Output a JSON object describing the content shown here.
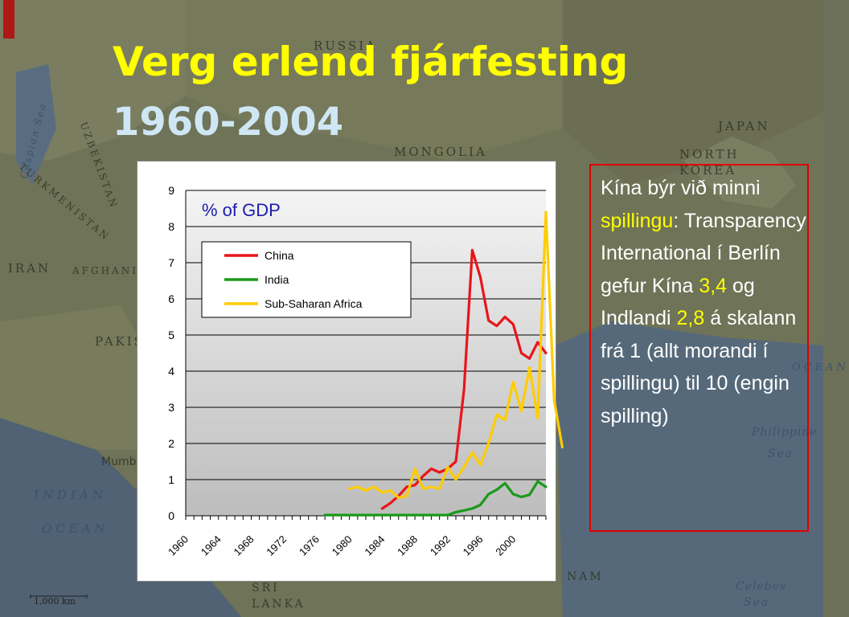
{
  "slide": {
    "title_line1": "Verg erlend fjárfesting",
    "title_line2": "1960-2004",
    "background_map_labels": {
      "russia": "RUSSIA",
      "mongolia": "MONGOLIA",
      "japan": "JAPAN",
      "north": "NORTH",
      "korea": "KOREA",
      "uzbekistan": "UZBEKISTAN",
      "turkmenistan": "TURKMENISTAN",
      "iran": "IRAN",
      "afghanistan": "AFGHANIS",
      "pakistan": "PAKIS",
      "mumbai": "Mumb",
      "caspian_sea": "Caspian Sea",
      "indian": "INDIAN",
      "ocean_left": "OCEAN",
      "ocean_right": "OCEAN",
      "philippine": "Philippine",
      "sea_right": "Sea",
      "sri": "SRI",
      "lanka": "LANKA",
      "nam": "NAM",
      "celebes": "Celebes",
      "sea_bottom": "Sea",
      "scale": "1,000 km"
    }
  },
  "note": {
    "parts": [
      {
        "text": "Kína býr við minni ",
        "color": "#ffffff"
      },
      {
        "text": "spillingu",
        "color": "#ffff00"
      },
      {
        "text": ": Transparency International í Berlín gefur Kína ",
        "color": "#ffffff"
      },
      {
        "text": "3,4",
        "color": "#ffff00"
      },
      {
        "text": " og Indlandi ",
        "color": "#ffffff"
      },
      {
        "text": "2,8",
        "color": "#ffff00"
      },
      {
        "text": " á skalann frá 1 (allt morandi í spillingu) til 10 (engin spilling)",
        "color": "#ffffff"
      }
    ]
  },
  "chart_data": {
    "type": "line",
    "title": "% of GDP",
    "xlabel": "",
    "ylabel": "",
    "xlim": [
      1960,
      2004
    ],
    "ylim": [
      0,
      9
    ],
    "y_ticks": [
      0,
      1,
      2,
      3,
      4,
      5,
      6,
      7,
      8,
      9
    ],
    "x_tick_labels": [
      "1960",
      "1964",
      "1968",
      "1972",
      "1976",
      "1980",
      "1984",
      "1988",
      "1992",
      "1996",
      "2000"
    ],
    "grid": true,
    "legend_position": "top-left",
    "series": [
      {
        "name": "China",
        "color": "#e8151b",
        "points": [
          [
            1984,
            0.2
          ],
          [
            1985,
            0.35
          ],
          [
            1986,
            0.55
          ],
          [
            1987,
            0.8
          ],
          [
            1988,
            0.85
          ],
          [
            1989,
            1.1
          ],
          [
            1990,
            1.3
          ],
          [
            1991,
            1.2
          ],
          [
            1992,
            1.3
          ],
          [
            1993,
            1.5
          ],
          [
            1994,
            3.5
          ],
          [
            1995,
            7.35
          ],
          [
            1996,
            6.6
          ],
          [
            1997,
            5.4
          ],
          [
            1998,
            5.25
          ],
          [
            1999,
            5.5
          ],
          [
            2000,
            5.3
          ],
          [
            2001,
            4.5
          ],
          [
            2002,
            4.35
          ],
          [
            2003,
            4.8
          ],
          [
            2004,
            4.5
          ]
        ]
      },
      {
        "name": "India",
        "color": "#1a9a1a",
        "points": [
          [
            1977,
            0.02
          ],
          [
            1978,
            0.02
          ],
          [
            1980,
            0.02
          ],
          [
            1984,
            0.02
          ],
          [
            1988,
            0.02
          ],
          [
            1990,
            0.02
          ],
          [
            1992,
            0.02
          ],
          [
            1993,
            0.1
          ],
          [
            1994,
            0.15
          ],
          [
            1995,
            0.2
          ],
          [
            1996,
            0.3
          ],
          [
            1997,
            0.6
          ],
          [
            1998,
            0.72
          ],
          [
            1999,
            0.9
          ],
          [
            2000,
            0.6
          ],
          [
            2001,
            0.52
          ],
          [
            2002,
            0.58
          ],
          [
            2003,
            0.95
          ],
          [
            2004,
            0.8
          ]
        ]
      },
      {
        "name": "Sub-Saharan Africa",
        "color": "#ffcc00",
        "points": [
          [
            1980,
            0.75
          ],
          [
            1981,
            0.8
          ],
          [
            1982,
            0.7
          ],
          [
            1983,
            0.8
          ],
          [
            1984,
            0.65
          ],
          [
            1985,
            0.7
          ],
          [
            1986,
            0.5
          ],
          [
            1987,
            0.55
          ],
          [
            1988,
            1.3
          ],
          [
            1989,
            0.75
          ],
          [
            1990,
            0.8
          ],
          [
            1991,
            0.75
          ],
          [
            1992,
            1.35
          ],
          [
            1993,
            1.0
          ],
          [
            1994,
            1.35
          ],
          [
            1995,
            1.75
          ],
          [
            1996,
            1.4
          ],
          [
            1997,
            2.0
          ],
          [
            1998,
            2.8
          ],
          [
            1999,
            2.65
          ],
          [
            2000,
            3.7
          ],
          [
            2001,
            2.9
          ],
          [
            2002,
            4.1
          ],
          [
            2003,
            2.7
          ],
          [
            2004,
            8.4
          ],
          [
            2005,
            3.2
          ],
          [
            2006,
            1.9
          ]
        ]
      }
    ]
  }
}
